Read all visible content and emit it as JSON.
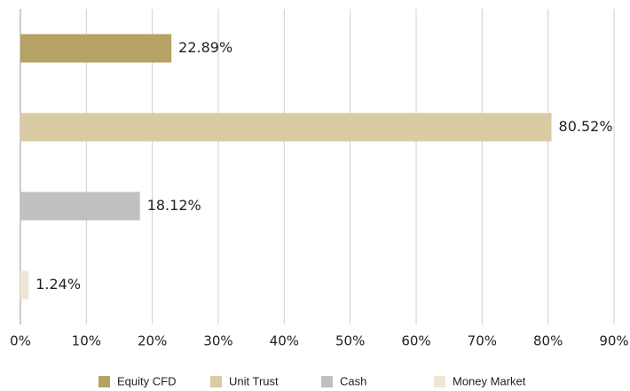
{
  "chart_data": {
    "type": "hbar",
    "series": [
      {
        "name": "Equity CFD",
        "color": "#b5a264",
        "values": [
          22.89
        ],
        "value_labels": [
          "22.89%"
        ]
      },
      {
        "name": "Unit Trust",
        "color": "#d9cba3",
        "values": [
          80.52
        ],
        "value_labels": [
          "80.52%"
        ]
      },
      {
        "name": "Cash",
        "color": "#c0c0c0",
        "values": [
          18.12
        ],
        "value_labels": [
          "18.12%"
        ]
      },
      {
        "name": "Money Market",
        "color": "#efe6d6",
        "values": [
          1.24
        ],
        "value_labels": [
          "1.24%"
        ]
      }
    ],
    "xlim": [
      0,
      90
    ],
    "xticks": [
      {
        "value": 0,
        "label": "0%"
      },
      {
        "value": 10,
        "label": "10%"
      },
      {
        "value": 20,
        "label": "20%"
      },
      {
        "value": 30,
        "label": "30%"
      },
      {
        "value": 40,
        "label": "40%"
      },
      {
        "value": 50,
        "label": "50%"
      },
      {
        "value": 60,
        "label": "60%"
      },
      {
        "value": 70,
        "label": "70%"
      },
      {
        "value": 80,
        "label": "80%"
      },
      {
        "value": 90,
        "label": "90%"
      }
    ],
    "grid": true
  }
}
